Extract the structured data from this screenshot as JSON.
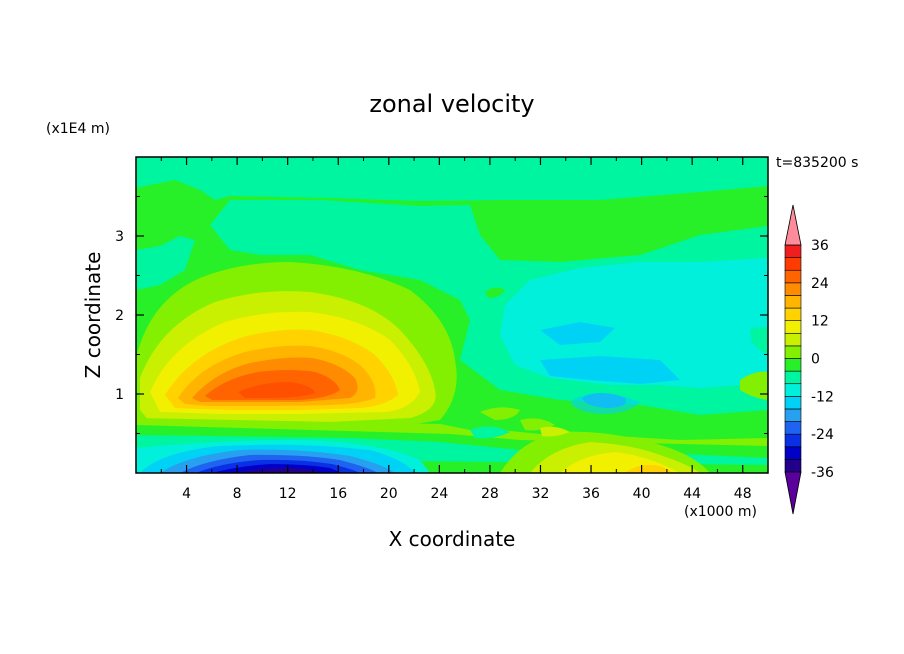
{
  "chart_data": {
    "type": "heatmap",
    "title": "zonal velocity",
    "time_label": "t=835200 s",
    "xlabel": "X coordinate",
    "ylabel": "Z coordinate",
    "x_unit": "(x1000 m)",
    "y_unit": "(x1E4 m)",
    "xlim": [
      0,
      50
    ],
    "ylim": [
      0,
      4
    ],
    "x_ticks": [
      "4",
      "8",
      "12",
      "16",
      "20",
      "24",
      "28",
      "32",
      "36",
      "40",
      "44",
      "48"
    ],
    "y_ticks": [
      "1",
      "2",
      "3"
    ],
    "colorbar": {
      "levels": [
        -40,
        -36,
        -32,
        -28,
        -24,
        -20,
        -16,
        -12,
        -8,
        -4,
        0,
        4,
        8,
        12,
        16,
        20,
        24,
        28,
        32,
        36,
        40
      ],
      "tick_labels": [
        "36",
        "24",
        "12",
        "0",
        "-12",
        "-24",
        "-36"
      ],
      "colors": [
        "#5a009c",
        "#23008c",
        "#0000c8",
        "#0a30e6",
        "#1e64f0",
        "#28a0f0",
        "#00d2f5",
        "#00f0dc",
        "#00f5a0",
        "#28f028",
        "#82f000",
        "#c8f000",
        "#f0f000",
        "#ffd200",
        "#ffb400",
        "#ff8c00",
        "#ff6400",
        "#ff3c00",
        "#f01e1e",
        "#ff8c9a"
      ]
    },
    "features": [
      {
        "name": "upper-level positive jet",
        "x_center": 11,
        "z_center": 1.05,
        "peak_value": 34
      },
      {
        "name": "surface negative jet",
        "x_center": 12,
        "z_center": 0.1,
        "peak_value": -34
      },
      {
        "name": "weak negative region",
        "x_center": 38,
        "z_center": 1.6,
        "peak_value": -10
      },
      {
        "name": "weak negative core",
        "x_center": 37.5,
        "z_center": 0.93,
        "peak_value": -20
      },
      {
        "name": "lower positive region",
        "x_center": 38,
        "z_center": 0.15,
        "peak_value": 14
      },
      {
        "name": "upper light green band",
        "x_center": 25,
        "z_center": 3.5,
        "peak_value": 4
      }
    ]
  }
}
